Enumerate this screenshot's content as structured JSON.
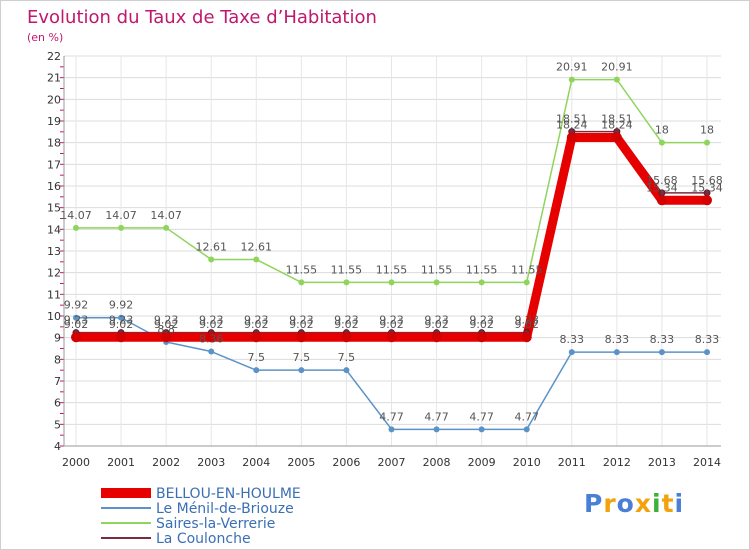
{
  "title": "Evolution du Taux de Taxe d’Habitation",
  "unit": "(en %)",
  "logo": {
    "letters": [
      {
        "ch": "P",
        "color": "#4a7fd6"
      },
      {
        "ch": "r",
        "color": "#f2a20c"
      },
      {
        "ch": "o",
        "color": "#4a7fd6"
      },
      {
        "ch": "x",
        "color": "#f2a20c"
      },
      {
        "ch": "i",
        "color": "#3ab23a"
      },
      {
        "ch": "t",
        "color": "#f2a20c"
      },
      {
        "ch": "i",
        "color": "#4a7fd6"
      }
    ]
  },
  "chart_data": {
    "type": "line",
    "x": [
      "2000",
      "2001",
      "2002",
      "2003",
      "2004",
      "2005",
      "2006",
      "2007",
      "2008",
      "2009",
      "2010",
      "2011",
      "2012",
      "2013",
      "2014"
    ],
    "ylim": [
      4,
      22
    ],
    "yticks": [
      4,
      5,
      6,
      7,
      8,
      9,
      10,
      11,
      12,
      13,
      14,
      15,
      16,
      17,
      18,
      19,
      20,
      21,
      22
    ],
    "grid": true,
    "legend_position": "bottom-left",
    "series": [
      {
        "name": "BELLOU-EN-HOULME",
        "color": "#e60000",
        "width": 9,
        "values": [
          9.02,
          9.02,
          9.02,
          9.02,
          9.02,
          9.02,
          9.02,
          9.02,
          9.02,
          9.02,
          9.02,
          18.24,
          18.24,
          15.34,
          15.34
        ],
        "labels": [
          "9.02",
          "9.02",
          "9.02",
          "9.02",
          "9.02",
          "9.02",
          "9.02",
          "9.02",
          "9.02",
          "9.02",
          "9.02",
          "18.24",
          "18.24",
          "15.34",
          "15.34"
        ]
      },
      {
        "name": "Le Ménil-de-Briouze",
        "color": "#5b93c8",
        "width": 1.5,
        "values": [
          9.92,
          9.92,
          8.8,
          8.36,
          7.5,
          7.5,
          7.5,
          4.77,
          4.77,
          4.77,
          4.77,
          8.33,
          8.33,
          8.33,
          8.33
        ],
        "labels": [
          "9.92",
          "9.92",
          "8.8",
          "8.36",
          "7.5",
          "7.5",
          "7.5",
          "4.77",
          "4.77",
          "4.77",
          "4.77",
          "8.33",
          "8.33",
          "8.33",
          "8.33"
        ]
      },
      {
        "name": "Saires-la-Verrerie",
        "color": "#8fd45c",
        "width": 1.5,
        "values": [
          14.07,
          14.07,
          14.07,
          12.61,
          12.61,
          11.55,
          11.55,
          11.55,
          11.55,
          11.55,
          11.55,
          20.91,
          20.91,
          18,
          18
        ],
        "labels": [
          "14.07",
          "14.07",
          "14.07",
          "12.61",
          "12.61",
          "11.55",
          "11.55",
          "11.55",
          "11.55",
          "11.55",
          "11.55",
          "20.91",
          "20.91",
          "18",
          "18"
        ]
      },
      {
        "name": "La Coulonche",
        "color": "#7a2b3e",
        "width": 1.5,
        "values": [
          9.23,
          9.23,
          9.23,
          9.23,
          9.23,
          9.23,
          9.23,
          9.23,
          9.23,
          9.23,
          9.23,
          18.51,
          18.51,
          15.68,
          15.68
        ],
        "labels": [
          "9.23",
          "9.23",
          "9.23",
          "9.23",
          "9.23",
          "9.23",
          "9.23",
          "9.23",
          "9.23",
          "9.23",
          "9.23",
          "18.51",
          "18.51",
          "15.68",
          "15.68"
        ]
      }
    ]
  }
}
